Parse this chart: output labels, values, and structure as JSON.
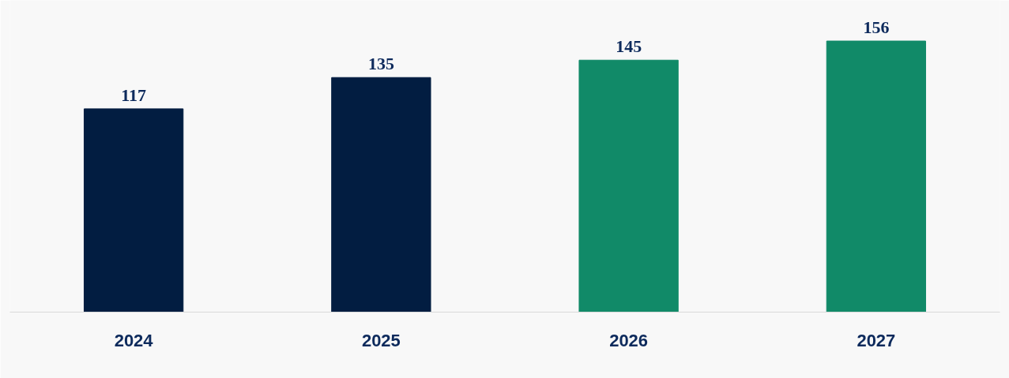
{
  "chart_data": {
    "type": "bar",
    "categories": [
      "2024",
      "2025",
      "2026",
      "2027"
    ],
    "values": [
      117,
      135,
      145,
      156
    ],
    "colors": [
      "#021d41",
      "#021d41",
      "#118a68",
      "#118a68"
    ],
    "data_labels": true
  }
}
